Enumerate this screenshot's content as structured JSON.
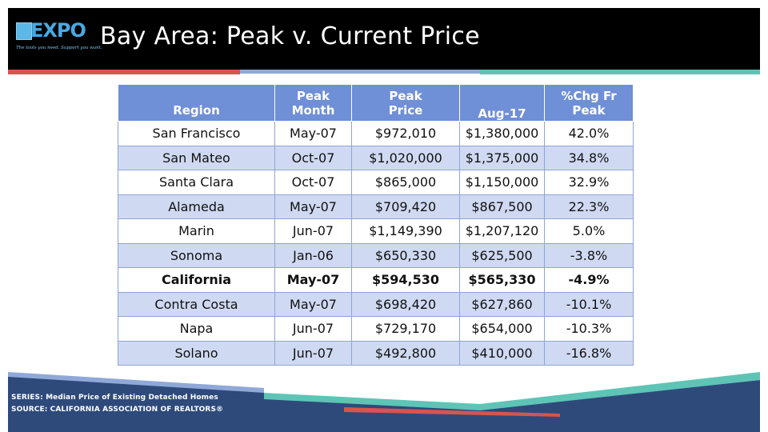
{
  "header": {
    "logo_text": "EXPO",
    "logo_tagline": "The tools you need. Support you want.",
    "title": "Bay Area: Peak v. Current Price"
  },
  "table": {
    "columns": [
      {
        "line1": "",
        "line2": "Region"
      },
      {
        "line1": "Peak",
        "line2": "Month"
      },
      {
        "line1": "Peak",
        "line2": "Price"
      },
      {
        "line1": "",
        "line2": "Aug-17"
      },
      {
        "line1": "%Chg Fr",
        "line2": "Peak"
      }
    ],
    "rows": [
      {
        "region": "San Francisco",
        "peak_month": "May-07",
        "peak_price": "$972,010",
        "current": "$1,380,000",
        "chg": "42.0%"
      },
      {
        "region": "San Mateo",
        "peak_month": "Oct-07",
        "peak_price": "$1,020,000",
        "current": "$1,375,000",
        "chg": "34.8%"
      },
      {
        "region": "Santa Clara",
        "peak_month": "Oct-07",
        "peak_price": "$865,000",
        "current": "$1,150,000",
        "chg": "32.9%"
      },
      {
        "region": "Alameda",
        "peak_month": "May-07",
        "peak_price": "$709,420",
        "current": "$867,500",
        "chg": "22.3%"
      },
      {
        "region": "Marin",
        "peak_month": "Jun-07",
        "peak_price": "$1,149,390",
        "current": "$1,207,120",
        "chg": "5.0%"
      },
      {
        "region": "Sonoma",
        "peak_month": "Jan-06",
        "peak_price": "$650,330",
        "current": "$625,500",
        "chg": "-3.8%"
      },
      {
        "region": "California",
        "peak_month": "May-07",
        "peak_price": "$594,530",
        "current": "$565,330",
        "chg": "-4.9%"
      },
      {
        "region": "Contra Costa",
        "peak_month": "May-07",
        "peak_price": "$698,420",
        "current": "$627,860",
        "chg": "-10.1%"
      },
      {
        "region": "Napa",
        "peak_month": "Jun-07",
        "peak_price": "$729,170",
        "current": "$654,000",
        "chg": "-10.3%"
      },
      {
        "region": "Solano",
        "peak_month": "Jun-07",
        "peak_price": "$492,800",
        "current": "$410,000",
        "chg": "-16.8%"
      }
    ]
  },
  "footer": {
    "series": "SERIES: Median Price of Existing Detached Homes",
    "source": "SOURCE:  CALIFORNIA ASSOCIATION OF REALTORS®"
  },
  "colors": {
    "header_bg": "#000000",
    "table_header": "#6f8fd6",
    "row_alt": "#cfd9f2",
    "accent_red": "#d9534f",
    "accent_blue": "#8fa8d8",
    "accent_teal": "#5ec4b6",
    "footer_navy": "#2e4a7a"
  }
}
